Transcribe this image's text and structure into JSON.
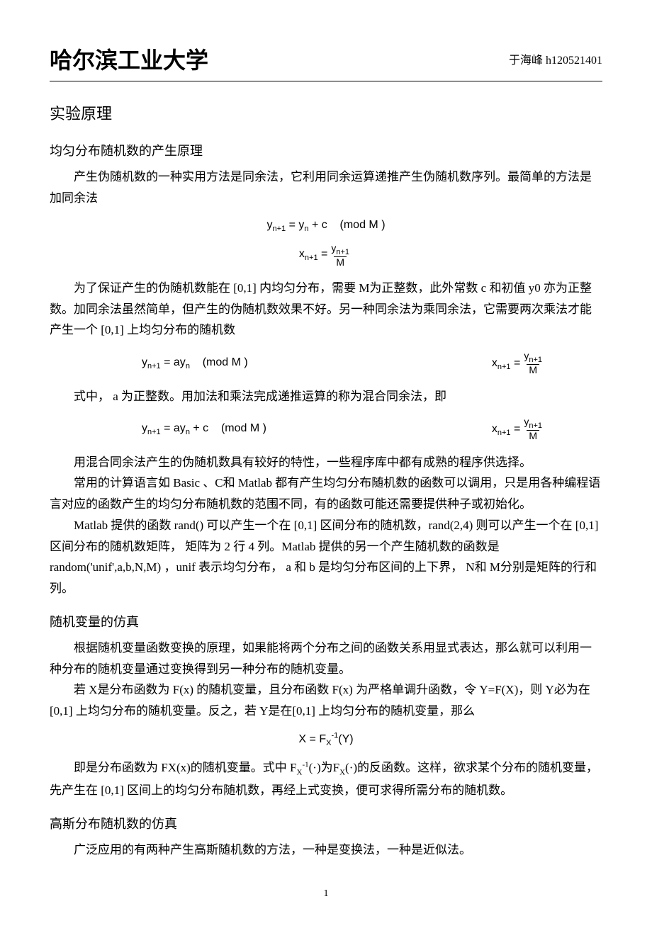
{
  "header": {
    "school": "哈尔滨工业大学",
    "author": "于海峰  h120521401"
  },
  "title": "实验原理",
  "section1": {
    "heading": "均匀分布随机数的产生原理",
    "p1": "产生伪随机数的一种实用方法是同余法，它利用同余运算递推产生伪随机数序列。最简单的方法是加同余法",
    "formula1": "y<sub>n+1</sub> = y<sub>n</sub> + c &nbsp;&nbsp; (mod M )",
    "formula2_lhs": "x<sub>n+1</sub> =",
    "formula2_num": "y<sub>n+1</sub>",
    "formula2_den": "M",
    "p2": "为了保证产生的伪随机数能在 [0,1] 内均匀分布，需要 M为正整数，此外常数 c 和初值 y0 亦为正整数。加同余法虽然简单，但产生的伪随机数效果不好。另一种同余法为乘同余法，它需要两次乘法才能产生一个  [0,1] 上均匀分布的随机数",
    "formula3_left": "y<sub>n+1</sub> = ay<sub>n</sub> &nbsp;&nbsp; (mod M )",
    "formula3_right_lhs": "x<sub>n+1</sub> =",
    "formula3_right_num": "y<sub>n+1</sub>",
    "formula3_right_den": "M",
    "p3": "式中， a 为正整数。用加法和乘法完成递推运算的称为混合同余法，即",
    "formula4_left": "y<sub>n+1</sub> = ay<sub>n</sub> + c &nbsp;&nbsp; (mod M )",
    "formula4_right_lhs": "x<sub>n+1</sub> =",
    "formula4_right_num": "y<sub>n+1</sub>",
    "formula4_right_den": "M",
    "p4": "用混合同余法产生的伪随机数具有较好的特性，一些程序库中都有成熟的程序供选择。",
    "p5": "常用的计算语言如 Basic 、C和 Matlab 都有产生均匀分布随机数的函数可以调用，只是用各种编程语言对应的函数产生的均匀分布随机数的范围不同，有的函数可能还需要提供种子或初始化。",
    "p6": "Matlab 提供的函数 rand() 可以产生一个在 [0,1] 区间分布的随机数，rand(2,4) 则可以产生一个在 [0,1] 区间分布的随机数矩阵， 矩阵为 2 行 4 列。Matlab 提供的另一个产生随机数的函数是  random('unif',a,b,N,M)   ，unif  表示均匀分布， a 和 b 是均匀分布区间的上下界， N和 M分别是矩阵的行和列。"
  },
  "section2": {
    "heading": "随机变量的仿真",
    "p1": "根据随机变量函数变换的原理，如果能将两个分布之间的函数关系用显式表达，那么就可以利用一种分布的随机变量通过变换得到另一种分布的随机变量。",
    "p2": "若 X是分布函数为 F(x) 的随机变量，且分布函数  F(x) 为严格单调升函数，令 Y=F(X)，则 Y必为在 [0,1] 上均匀分布的随机变量。反之，若  Y是在[0,1] 上均匀分布的随机变量，那么",
    "formula5": "X = F<sub>X</sub><sup>-1</sup>(Y)",
    "p3": "即是分布函数为 FX(x)的随机变量。式中 F<sub>X</sub><sup>-1</sup>(·)为F<sub>X</sub>(·)的反函数。这样，欲求某个分布的随机变量，先产生在  [0,1] 区间上的均匀分布随机数，再经上式变换，便可求得所需分布的随机数。"
  },
  "section3": {
    "heading": "高斯分布随机数的仿真",
    "p1": "广泛应用的有两种产生高斯随机数的方法，一种是变换法，一种是近似法。"
  },
  "pageNumber": "1"
}
